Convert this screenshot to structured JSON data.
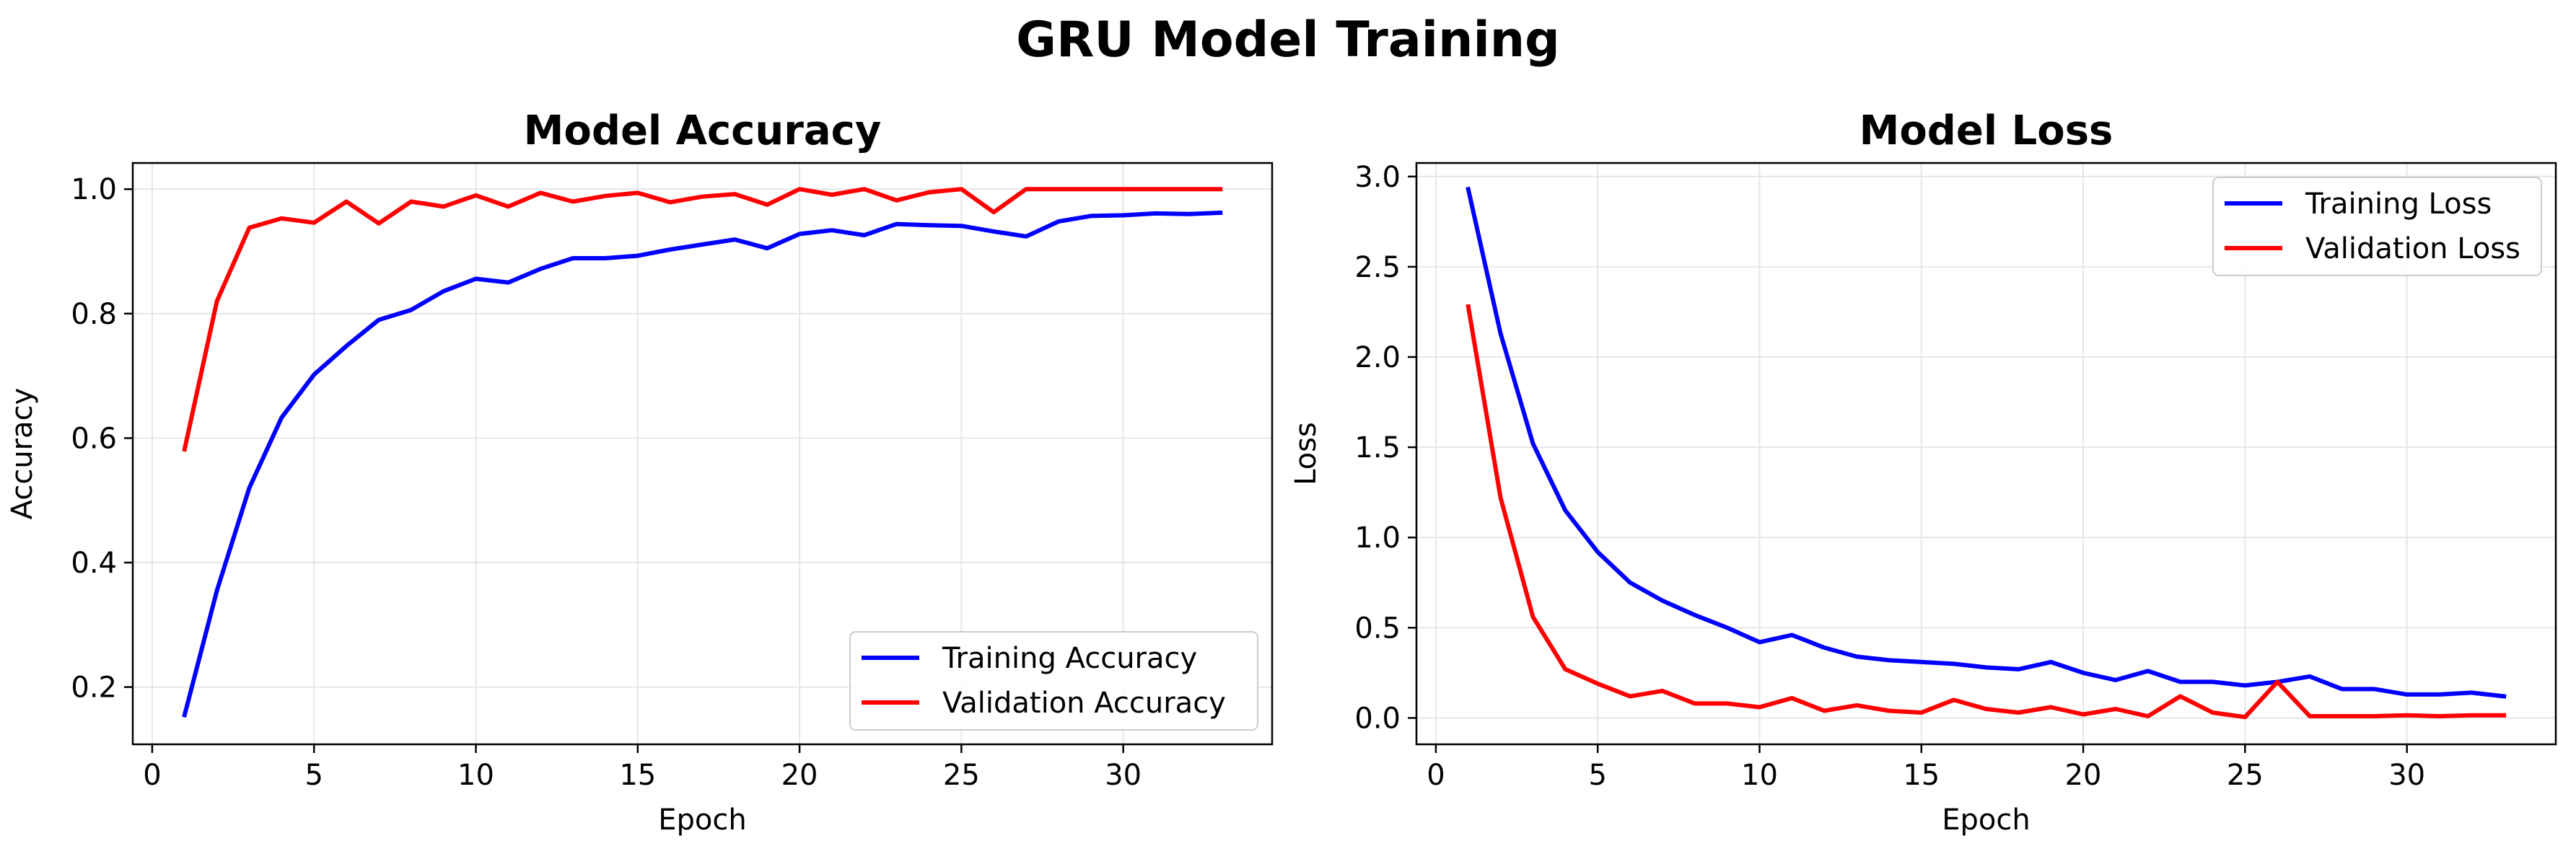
{
  "figure": {
    "title": "GRU Model Training"
  },
  "chart_data": [
    {
      "type": "line",
      "title": "Model Accuracy",
      "xlabel": "Epoch",
      "ylabel": "Accuracy",
      "xlim": [
        -0.6,
        34.6
      ],
      "ylim": [
        0.108,
        1.042
      ],
      "xticks": [
        0,
        5,
        10,
        15,
        20,
        25,
        30
      ],
      "yticks": [
        0.2,
        0.4,
        0.6,
        0.8,
        1.0
      ],
      "ytick_labels": [
        "0.2",
        "0.4",
        "0.6",
        "0.8",
        "1.0"
      ],
      "grid": true,
      "legend_position": "lower-right",
      "x": [
        1,
        2,
        3,
        4,
        5,
        6,
        7,
        8,
        9,
        10,
        11,
        12,
        13,
        14,
        15,
        16,
        17,
        18,
        19,
        20,
        21,
        22,
        23,
        24,
        25,
        26,
        27,
        28,
        29,
        30,
        31,
        32,
        33
      ],
      "series": [
        {
          "name": "Training Accuracy",
          "color": "#0000ff",
          "values": [
            0.155,
            0.355,
            0.52,
            0.633,
            0.702,
            0.748,
            0.79,
            0.806,
            0.836,
            0.856,
            0.85,
            0.872,
            0.889,
            0.889,
            0.893,
            0.903,
            0.911,
            0.919,
            0.905,
            0.928,
            0.934,
            0.926,
            0.944,
            0.942,
            0.941,
            0.932,
            0.924,
            0.948,
            0.957,
            0.958,
            0.961,
            0.96,
            0.962
          ]
        },
        {
          "name": "Validation Accuracy",
          "color": "#ff0000",
          "values": [
            0.582,
            0.82,
            0.938,
            0.953,
            0.946,
            0.98,
            0.945,
            0.98,
            0.972,
            0.99,
            0.972,
            0.994,
            0.98,
            0.989,
            0.994,
            0.979,
            0.988,
            0.992,
            0.975,
            1.0,
            0.991,
            1.0,
            0.982,
            0.995,
            1.0,
            0.963,
            1.0,
            1.0,
            1.0,
            1.0,
            1.0,
            1.0,
            1.0
          ]
        }
      ]
    },
    {
      "type": "line",
      "title": "Model Loss",
      "xlabel": "Epoch",
      "ylabel": "Loss",
      "xlim": [
        -0.6,
        34.6
      ],
      "ylim": [
        -0.146,
        3.075
      ],
      "xticks": [
        0,
        5,
        10,
        15,
        20,
        25,
        30
      ],
      "yticks": [
        0.0,
        0.5,
        1.0,
        1.5,
        2.0,
        2.5,
        3.0
      ],
      "ytick_labels": [
        "0.0",
        "0.5",
        "1.0",
        "1.5",
        "2.0",
        "2.5",
        "3.0"
      ],
      "grid": true,
      "legend_position": "upper-right",
      "x": [
        1,
        2,
        3,
        4,
        5,
        6,
        7,
        8,
        9,
        10,
        11,
        12,
        13,
        14,
        15,
        16,
        17,
        18,
        19,
        20,
        21,
        22,
        23,
        24,
        25,
        26,
        27,
        28,
        29,
        30,
        31,
        32,
        33
      ],
      "series": [
        {
          "name": "Training Loss",
          "color": "#0000ff",
          "values": [
            2.93,
            2.13,
            1.52,
            1.15,
            0.92,
            0.75,
            0.65,
            0.57,
            0.5,
            0.42,
            0.46,
            0.39,
            0.34,
            0.32,
            0.31,
            0.3,
            0.28,
            0.27,
            0.31,
            0.25,
            0.21,
            0.26,
            0.2,
            0.2,
            0.18,
            0.2,
            0.23,
            0.16,
            0.16,
            0.13,
            0.13,
            0.14,
            0.12
          ]
        },
        {
          "name": "Validation Loss",
          "color": "#ff0000",
          "values": [
            2.28,
            1.22,
            0.56,
            0.27,
            0.19,
            0.12,
            0.15,
            0.08,
            0.08,
            0.06,
            0.11,
            0.04,
            0.07,
            0.04,
            0.03,
            0.1,
            0.05,
            0.03,
            0.06,
            0.02,
            0.05,
            0.01,
            0.12,
            0.03,
            0.005,
            0.2,
            0.01,
            0.01,
            0.01,
            0.015,
            0.01,
            0.015,
            0.015
          ]
        }
      ]
    }
  ]
}
